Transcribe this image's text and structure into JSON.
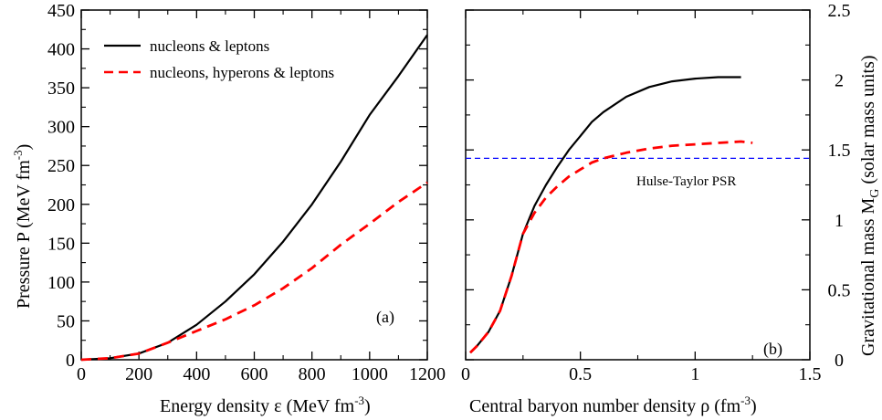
{
  "chart_data": [
    {
      "panel": "a",
      "type": "line",
      "panel_label": "(a)",
      "xlabel": "Energy density ε (MeV fm",
      "xlabel_sup": "-3",
      "xlabel_end": ")",
      "ylabel": "Pressure P (MeV fm",
      "ylabel_sup": "-3",
      "ylabel_end": ")",
      "xlim": [
        0,
        1200
      ],
      "ylim": [
        0,
        450
      ],
      "xticks": [
        0,
        200,
        400,
        600,
        800,
        1000,
        1200
      ],
      "yticks": [
        0,
        50,
        100,
        150,
        200,
        250,
        300,
        350,
        400,
        450
      ],
      "legend_position": "top-left",
      "series": [
        {
          "name": "nucleons & leptons",
          "color": "#000000",
          "dash": "solid",
          "x": [
            0,
            100,
            200,
            300,
            400,
            500,
            600,
            700,
            800,
            900,
            1000,
            1100,
            1200
          ],
          "y": [
            0,
            2,
            8,
            22,
            45,
            75,
            110,
            152,
            200,
            255,
            315,
            365,
            418
          ]
        },
        {
          "name": "nucleons, hyperons & leptons",
          "color": "#ff0000",
          "dash": "dashed",
          "x": [
            0,
            100,
            200,
            300,
            400,
            500,
            600,
            700,
            800,
            900,
            1000,
            1100,
            1200
          ],
          "y": [
            0,
            2,
            8,
            22,
            37,
            52,
            70,
            92,
            118,
            148,
            175,
            203,
            228
          ]
        }
      ]
    },
    {
      "panel": "b",
      "type": "line",
      "panel_label": "(b)",
      "xlabel": "Central baryon number density ρ (fm",
      "xlabel_sup": "-3",
      "xlabel_end": ")",
      "ylabel": "Gravitational mass M",
      "ylabel_sub": "G",
      "ylabel_end": " (solar mass units)",
      "xlim": [
        0,
        1.5
      ],
      "ylim": [
        0,
        2.5
      ],
      "xticks": [
        0,
        0.5,
        1,
        1.5
      ],
      "xtick_labels": [
        "0",
        "0.5",
        "1",
        "1.5"
      ],
      "yticks": [
        0,
        0.5,
        1,
        1.5,
        2,
        2.5
      ],
      "ytick_labels": [
        "0",
        "0.5",
        "1",
        "1.5",
        "2",
        "2.5"
      ],
      "y_axis_side": "right",
      "reference_line": {
        "label": "Hulse-Taylor PSR",
        "y": 1.44,
        "color": "#0000ff",
        "dash": "dashed"
      },
      "series": [
        {
          "name": "nucleons & leptons",
          "color": "#000000",
          "dash": "solid",
          "x": [
            0.02,
            0.05,
            0.1,
            0.15,
            0.2,
            0.25,
            0.3,
            0.35,
            0.4,
            0.45,
            0.5,
            0.55,
            0.6,
            0.7,
            0.8,
            0.9,
            1.0,
            1.1,
            1.2
          ],
          "y": [
            0.05,
            0.1,
            0.2,
            0.35,
            0.6,
            0.9,
            1.1,
            1.25,
            1.38,
            1.5,
            1.6,
            1.7,
            1.77,
            1.88,
            1.95,
            1.99,
            2.01,
            2.02,
            2.02
          ]
        },
        {
          "name": "nucleons, hyperons & leptons",
          "color": "#ff0000",
          "dash": "dashed",
          "x": [
            0.02,
            0.05,
            0.1,
            0.15,
            0.2,
            0.25,
            0.3,
            0.35,
            0.4,
            0.45,
            0.5,
            0.55,
            0.6,
            0.7,
            0.8,
            0.9,
            1.0,
            1.1,
            1.2,
            1.25
          ],
          "y": [
            0.05,
            0.1,
            0.2,
            0.35,
            0.6,
            0.9,
            1.05,
            1.16,
            1.24,
            1.31,
            1.36,
            1.41,
            1.44,
            1.48,
            1.51,
            1.53,
            1.54,
            1.55,
            1.56,
            1.55
          ]
        }
      ]
    }
  ]
}
